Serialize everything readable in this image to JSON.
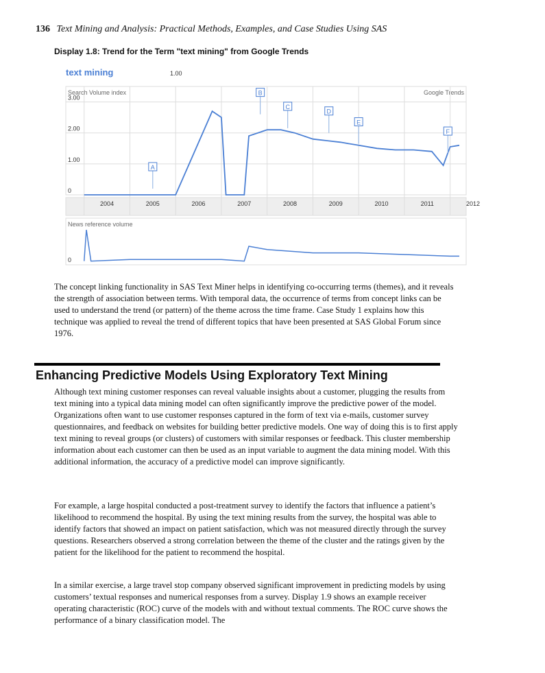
{
  "header": {
    "page_number": "136",
    "book_title": "Text Mining and Analysis: Practical Methods, Examples, and Case Studies Using SAS"
  },
  "display": {
    "caption": "Display 1.8: Trend for the Term \"text mining\" from Google Trends"
  },
  "chart_data": {
    "type": "line",
    "term": "text mining",
    "term_value": "1.00",
    "panel_label": "Search Volume index",
    "brand": "Google Trends",
    "news_label": "News reference volume",
    "news_zero_label": "0",
    "y_ticks": [
      "3.00",
      "2.00",
      "1.00",
      "0"
    ],
    "ylim": [
      0,
      3.5
    ],
    "x_years": [
      "2004",
      "2005",
      "2006",
      "2007",
      "2008",
      "2009",
      "2010",
      "2011",
      "2012"
    ],
    "series": [
      {
        "x": [
          2004.0,
          2005.0,
          2006.0,
          2006.8,
          2007.0,
          2007.1,
          2007.2,
          2007.5,
          2007.6,
          2008.0,
          2008.3,
          2008.6,
          2009.0,
          2009.3,
          2009.6,
          2010.0,
          2010.4,
          2010.8,
          2011.2,
          2011.6,
          2011.85,
          2012.0,
          2012.2
        ],
        "values": [
          0.0,
          0.0,
          0.0,
          2.7,
          2.5,
          0.0,
          0.0,
          0.0,
          1.9,
          2.1,
          2.1,
          2.0,
          1.8,
          1.75,
          1.7,
          1.6,
          1.5,
          1.45,
          1.45,
          1.4,
          0.95,
          1.55,
          1.6
        ]
      }
    ],
    "news_series": {
      "x": [
        2004.0,
        2004.05,
        2004.15,
        2005.0,
        2006.0,
        2007.0,
        2007.5,
        2007.6,
        2008.0,
        2009.0,
        2010.0,
        2011.0,
        2012.0,
        2012.2
      ],
      "values": [
        0.05,
        1.0,
        0.05,
        0.1,
        0.1,
        0.1,
        0.05,
        0.5,
        0.4,
        0.3,
        0.3,
        0.25,
        0.2,
        0.2
      ]
    },
    "annotations": [
      {
        "label": "A",
        "x": 2005.5,
        "y": 0.2
      },
      {
        "label": "B",
        "x": 2007.85,
        "y": 2.6
      },
      {
        "label": "C",
        "x": 2008.45,
        "y": 2.15
      },
      {
        "label": "D",
        "x": 2009.35,
        "y": 2.0
      },
      {
        "label": "E",
        "x": 2010.0,
        "y": 1.65
      },
      {
        "label": "F",
        "x": 2011.95,
        "y": 1.35
      }
    ],
    "colors": {
      "line": "#4a7fd4",
      "grid": "#dddddd",
      "text": "#666666",
      "term": "#4a7fd4"
    }
  },
  "paragraphs": {
    "p1": "The concept linking functionality in SAS Text Miner helps in identifying co-occurring terms (themes), and it reveals the strength of association between terms. With temporal data, the occurrence of terms from concept links can be used to understand the trend (or pattern) of the theme across the time frame. Case Study 1 explains how this technique was applied to reveal the trend of different topics that have been presented at SAS Global Forum since 1976.",
    "p2": "Although text mining customer responses can reveal valuable insights about a customer, plugging the results from text mining into a typical data mining model can often significantly improve the predictive power of the model. Organizations often want to use customer responses captured in the form of text via e-mails, customer survey questionnaires, and feedback on websites for building better predictive models. One way of doing this is to first apply text mining to reveal groups (or clusters) of customers with similar responses or feedback. This cluster membership information about each customer can then be used as an input variable to augment the data mining model. With this additional information, the accuracy of a predictive model can improve significantly.",
    "p3": "For example, a large hospital conducted a post-treatment survey to identify the factors that influence a patient’s likelihood to recommend the hospital. By using the text mining results from the survey, the hospital was able to identify factors that showed an impact on patient satisfaction, which was not measured directly through the survey questions. Researchers observed a strong correlation between the theme of the cluster and the ratings given by the patient for the likelihood for the patient to recommend the hospital.",
    "p4": "In a similar exercise, a large travel stop company observed significant improvement in predicting models by using customers’ textual responses and numerical responses from a survey. Display 1.9 shows an example receiver operating characteristic (ROC) curve of the models with and without textual comments. The ROC curve shows the performance of a binary classification model. The"
  },
  "section": {
    "heading": "Enhancing Predictive Models Using Exploratory Text Mining"
  }
}
